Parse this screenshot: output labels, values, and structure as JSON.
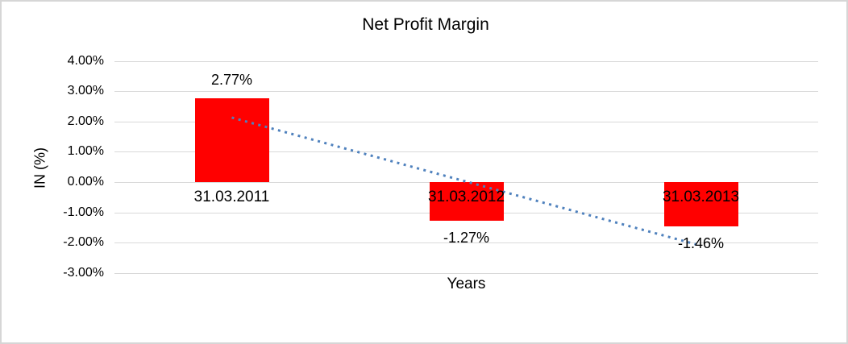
{
  "chart_data": {
    "type": "bar",
    "title": "Net Profit Margin",
    "xlabel": "Years",
    "ylabel": "IN (%)",
    "categories": [
      "31.03.2011",
      "31.03.2012",
      "31.03.2013"
    ],
    "values": [
      2.77,
      -1.27,
      -1.46
    ],
    "data_labels": [
      "2.77%",
      "-1.27%",
      "-1.46%"
    ],
    "ylim": [
      -3,
      4
    ],
    "ytick_labels": [
      "4.00%",
      "3.00%",
      "2.00%",
      "1.00%",
      "0.00%",
      "-1.00%",
      "-2.00%",
      "-3.00%"
    ],
    "grid": true,
    "legend": "none",
    "bar_color": "#ff0000",
    "gridline_color": "#d9d9d9",
    "trendline": {
      "type": "linear",
      "style": "dotted",
      "color": "#4f81bd",
      "start_value": 2.13,
      "end_value": -2.1
    }
  }
}
